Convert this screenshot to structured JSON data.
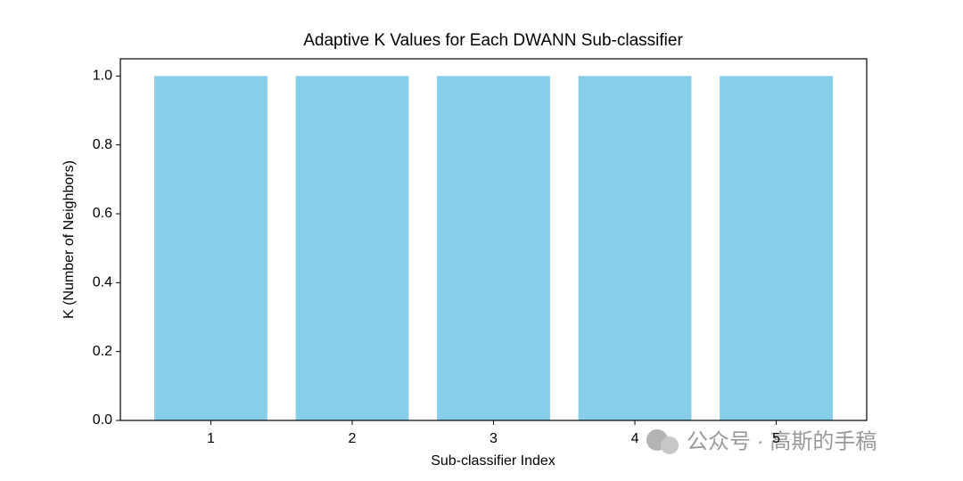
{
  "chart_data": {
    "type": "bar",
    "title": "Adaptive K Values for Each DWANN Sub-classifier",
    "x_label": "Sub-classifier Index",
    "y_label": "K (Number of Neighbors)",
    "x": [
      1,
      2,
      3,
      4,
      5
    ],
    "values": [
      1,
      1,
      1,
      1,
      1
    ],
    "color": "#87ceeb",
    "xlim": [
      0.36,
      5.64
    ],
    "xticks": [
      1,
      2,
      3,
      4,
      5
    ],
    "ylim": [
      0,
      1.05
    ],
    "yticks": [
      {
        "value": 0,
        "label": "0.0"
      },
      0.2,
      0.4,
      0.6,
      0.8,
      {
        "value": 1,
        "label": "1.0"
      }
    ],
    "grid": false,
    "bar_width": 0.8,
    "watermark": "公众号 · 高斯的手稿"
  }
}
